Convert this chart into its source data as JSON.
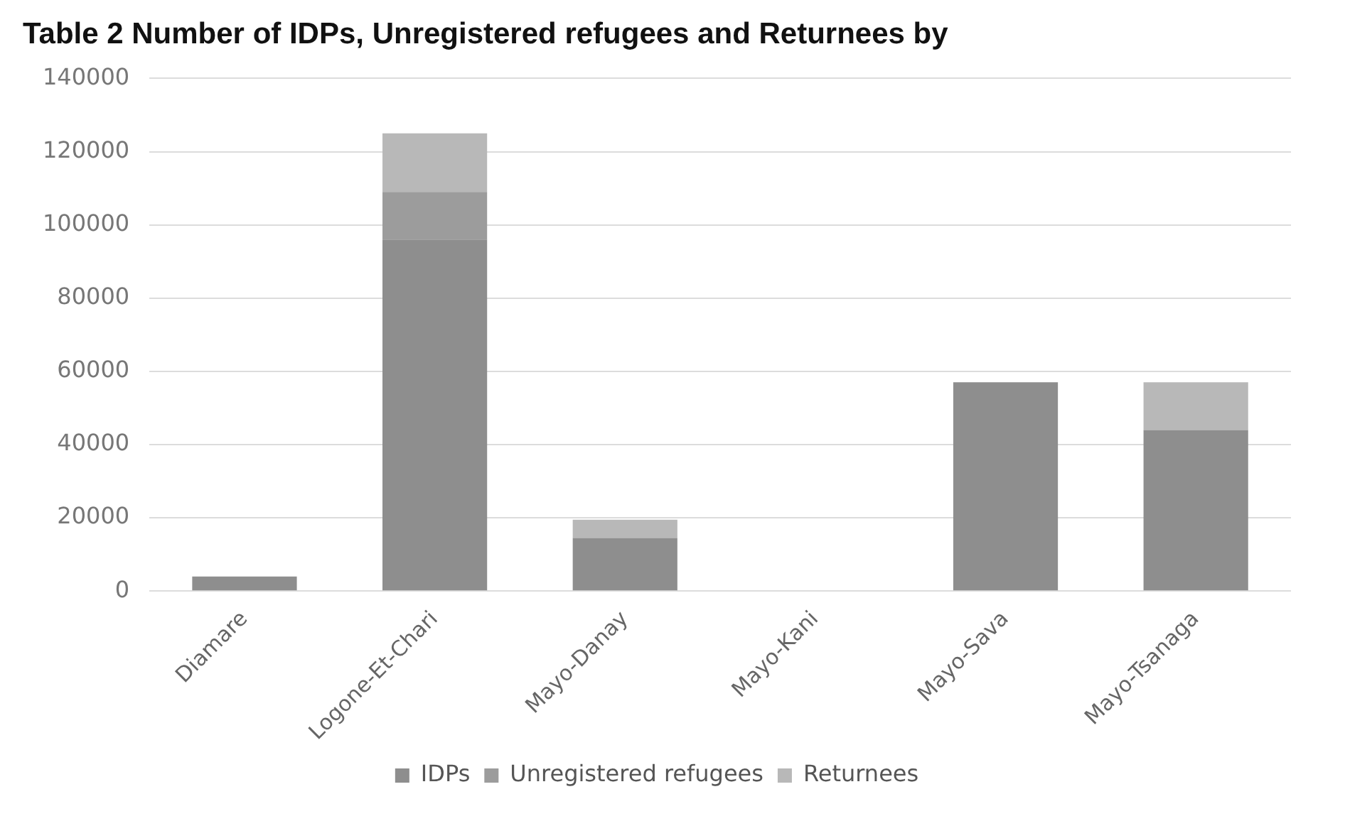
{
  "chart_data": {
    "type": "bar",
    "title": "Table 2 Number of IDPs, Unregistered refugees and Returnees by",
    "categories": [
      "Diamare",
      "Logone-Et-Chari",
      "Mayo-Danay",
      "Mayo-Kani",
      "Mayo-Sava",
      "Mayo-Tsanaga"
    ],
    "stacked": true,
    "series": [
      {
        "name": "IDPs",
        "color": "#8e8e8e",
        "values": [
          4000,
          96000,
          14500,
          0,
          57000,
          44000
        ]
      },
      {
        "name": "Unregistered refugees",
        "color": "#9c9c9c",
        "values": [
          0,
          13000,
          0,
          0,
          0,
          0
        ]
      },
      {
        "name": "Returnees",
        "color": "#b8b8b8",
        "values": [
          0,
          16000,
          5000,
          0,
          0,
          13000
        ]
      }
    ],
    "ylim": [
      0,
      140000
    ],
    "yticks": [
      0,
      20000,
      40000,
      60000,
      80000,
      100000,
      120000,
      140000
    ],
    "grid": "y",
    "legend": "bottom"
  }
}
